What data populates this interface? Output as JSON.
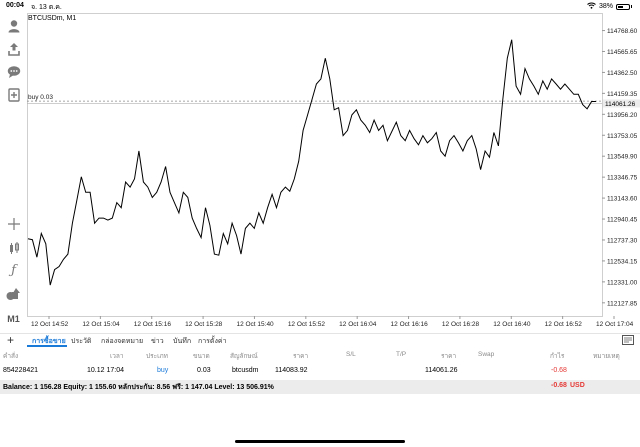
{
  "status_bar": {
    "time": "00:04",
    "date": "จ. 13 ต.ค.",
    "battery": "38%",
    "battery_level": 0.38
  },
  "toolbar": {
    "timeframe": "M1",
    "icons": [
      "person-icon",
      "share-icon",
      "chat-icon",
      "add-chart-icon",
      "crosshair-icon",
      "candles-icon",
      "function-icon",
      "shapes-icon"
    ]
  },
  "chart": {
    "symbol": "BTCUSDm, M1",
    "position_label": "buy 0.03",
    "current_price": "114061.26",
    "price_levels": [
      "114768.60",
      "114565.65",
      "114362.50",
      "114159.35",
      "113956.20",
      "113753.05",
      "113549.90",
      "113346.75",
      "113143.60",
      "112940.45",
      "112737.30",
      "112534.15",
      "112331.00",
      "112127.85"
    ],
    "time_labels": [
      "12 Oct 14:52",
      "12 Oct 15:04",
      "12 Oct 15:16",
      "12 Oct 15:28",
      "12 Oct 15:40",
      "12 Oct 15:52",
      "12 Oct 16:04",
      "12 Oct 16:16",
      "12 Oct 16:28",
      "12 Oct 16:40",
      "12 Oct 16:52",
      "12 Oct 17:04"
    ]
  },
  "chart_data": {
    "type": "line",
    "title": "BTCUSDm, M1",
    "ylim": [
      112000,
      114900
    ],
    "position_price": 114083.92,
    "last_price": 114061.26,
    "values": [
      112750,
      112740,
      112570,
      112800,
      112700,
      112300,
      112450,
      112480,
      112550,
      112600,
      112900,
      113120,
      113350,
      113200,
      113200,
      112900,
      112950,
      112950,
      112930,
      112950,
      113100,
      113050,
      113300,
      113250,
      113330,
      113600,
      113300,
      113250,
      113150,
      113200,
      113300,
      113450,
      113200,
      113100,
      113000,
      113200,
      113150,
      112950,
      112850,
      112760,
      113050,
      112880,
      112600,
      112590,
      112800,
      112700,
      112900,
      112780,
      112600,
      112850,
      112900,
      112850,
      113000,
      112900,
      113050,
      113180,
      113050,
      113200,
      113250,
      113210,
      113330,
      113500,
      113800,
      113950,
      114100,
      114250,
      114300,
      114500,
      114300,
      114000,
      114020,
      113750,
      113800,
      113950,
      114000,
      113900,
      113850,
      113780,
      113900,
      113800,
      113850,
      113700,
      113790,
      113880,
      113750,
      113700,
      113800,
      113720,
      113660,
      113750,
      113680,
      113720,
      113780,
      113600,
      113550,
      113700,
      113750,
      113680,
      113600,
      113700,
      113750,
      113620,
      113420,
      113600,
      113540,
      113780,
      113650,
      114100,
      114500,
      114680,
      114230,
      114150,
      114400,
      114300,
      114230,
      114150,
      114280,
      114200,
      114300,
      114250,
      114200,
      114250,
      114200,
      114150,
      114150,
      114050,
      114010,
      114080,
      114080
    ]
  },
  "tabs": {
    "items": [
      "การซื้อขาย",
      "ประวัติ",
      "กล่องจดหมาย",
      "ข่าว",
      "บันทึก",
      "การตั้งค่า"
    ]
  },
  "table": {
    "headers": [
      "คำสั่ง",
      "เวลา",
      "ประเภท",
      "ขนาด",
      "สัญลักษณ์",
      "ราคา",
      "S/L",
      "T/P",
      "ราคา",
      "Swap",
      "กำไร",
      "หมายเหตุ"
    ],
    "row": {
      "order": "854228421",
      "time": "10.12 17:04",
      "type": "buy",
      "size": "0.03",
      "symbol": "btcusdm",
      "open_price": "114083.92",
      "sl": "",
      "tp": "",
      "price": "114061.26",
      "swap": "",
      "profit": "-0.68",
      "comment": ""
    },
    "balance": "Balance: 1 156.28 Equity: 1 155.60 หลักประกัน: 8.56 ฟรี: 1 147.04 Level: 13 506.91%",
    "balance_profit": "-0.68",
    "currency": "USD"
  },
  "colors": {
    "accent": "#1a7ad8",
    "loss": "#e53935",
    "line": "#000000",
    "grid": "#e8e8e8"
  }
}
